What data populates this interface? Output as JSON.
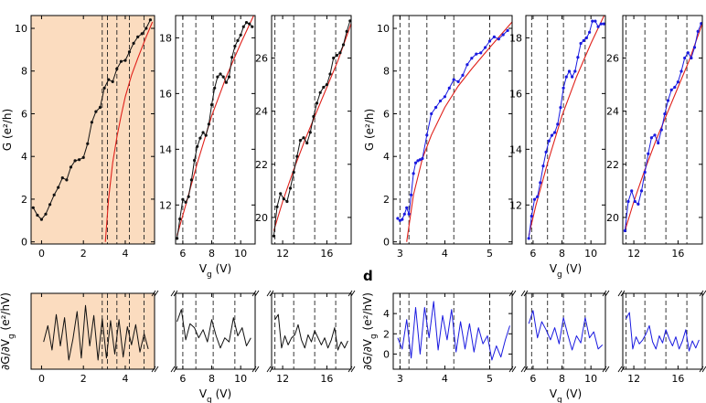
{
  "figure": {
    "panel_label": "d"
  },
  "colors": {
    "black": "#111111",
    "fit": "#e0201a",
    "blue": "#1a1ae0",
    "shade": "#fbdcbf"
  },
  "chart_data": [
    {
      "id": "g_black_1",
      "type": "line",
      "row": "top",
      "color": "#111111",
      "shaded": true,
      "ylabel": "G (e²/h)",
      "xlabel": "",
      "xlim": [
        -0.5,
        5.4
      ],
      "ylim": [
        -0.1,
        10.6
      ],
      "xticks": [
        0,
        2,
        4
      ],
      "yticks": [
        0,
        2,
        4,
        6,
        8,
        10
      ],
      "dashed_x": [
        2.9,
        3.15,
        3.6,
        4.2,
        4.9
      ],
      "x": [
        -0.4,
        -0.2,
        0.0,
        0.2,
        0.4,
        0.6,
        0.8,
        1.0,
        1.2,
        1.4,
        1.6,
        1.8,
        2.0,
        2.2,
        2.4,
        2.6,
        2.8,
        3.0,
        3.2,
        3.4,
        3.6,
        3.8,
        4.0,
        4.2,
        4.4,
        4.6,
        4.8,
        5.0,
        5.2
      ],
      "y": [
        1.6,
        1.25,
        1.05,
        1.3,
        1.75,
        2.2,
        2.55,
        3.0,
        2.9,
        3.5,
        3.8,
        3.85,
        3.95,
        4.6,
        5.6,
        6.1,
        6.3,
        7.2,
        7.6,
        7.5,
        8.1,
        8.45,
        8.5,
        8.9,
        9.3,
        9.6,
        9.75,
        10.0,
        10.4
      ],
      "fit": {
        "x": [
          3.05,
          3.2,
          3.4,
          3.6,
          3.8,
          4.0,
          4.3,
          4.6,
          5.0,
          5.3
        ],
        "y": [
          0.0,
          2.0,
          3.7,
          4.9,
          5.9,
          6.8,
          7.8,
          8.6,
          9.6,
          10.3
        ]
      }
    },
    {
      "id": "g_black_2",
      "type": "line",
      "row": "top",
      "color": "#111111",
      "shaded": false,
      "ylabel": "",
      "xlabel": "V_g (V)",
      "xlim": [
        5.5,
        11.0
      ],
      "ylim": [
        10.6,
        18.8
      ],
      "xticks": [
        6,
        8,
        10
      ],
      "yticks": [
        12,
        14,
        16,
        18
      ],
      "dashed_x": [
        6.0,
        6.9,
        8.1,
        9.6
      ],
      "x": [
        5.6,
        5.8,
        6.0,
        6.2,
        6.4,
        6.6,
        6.8,
        7.0,
        7.2,
        7.4,
        7.6,
        7.8,
        8.0,
        8.2,
        8.4,
        8.6,
        8.8,
        9.0,
        9.2,
        9.4,
        9.6,
        9.8,
        10.0,
        10.2,
        10.4,
        10.6,
        10.8
      ],
      "y": [
        10.8,
        11.5,
        12.2,
        12.1,
        12.3,
        12.9,
        13.6,
        14.1,
        14.4,
        14.6,
        14.5,
        14.9,
        15.6,
        16.2,
        16.6,
        16.7,
        16.6,
        16.4,
        16.6,
        17.3,
        17.7,
        17.9,
        18.1,
        18.4,
        18.55,
        18.5,
        18.4
      ],
      "fit": {
        "x": [
          5.6,
          6.2,
          7.0,
          8.0,
          9.0,
          10.0,
          10.9
        ],
        "y": [
          10.9,
          12.0,
          13.5,
          15.2,
          16.6,
          17.8,
          18.8
        ]
      }
    },
    {
      "id": "g_black_3",
      "type": "line",
      "row": "top",
      "color": "#111111",
      "shaded": false,
      "ylabel": "",
      "xlabel": "",
      "xlim": [
        11.0,
        18.2
      ],
      "ylim": [
        19.0,
        27.6
      ],
      "xticks": [
        12,
        16
      ],
      "yticks": [
        20,
        22,
        24,
        26
      ],
      "dashed_x": [
        11.3,
        13.0,
        14.9,
        16.8
      ],
      "x": [
        11.2,
        11.5,
        11.8,
        12.1,
        12.4,
        12.7,
        13.0,
        13.3,
        13.6,
        13.9,
        14.2,
        14.5,
        14.8,
        15.1,
        15.4,
        15.7,
        16.0,
        16.3,
        16.6,
        16.9,
        17.2,
        17.5,
        17.8,
        18.1
      ],
      "y": [
        19.3,
        20.4,
        20.9,
        20.7,
        20.6,
        21.1,
        21.7,
        22.3,
        22.9,
        23.0,
        22.8,
        23.2,
        23.8,
        24.3,
        24.7,
        24.9,
        25.0,
        25.4,
        26.0,
        26.1,
        26.2,
        26.5,
        27.0,
        27.4
      ],
      "fit": {
        "x": [
          11.2,
          12.0,
          13.0,
          14.0,
          15.0,
          16.0,
          17.0,
          18.2
        ],
        "y": [
          19.5,
          20.6,
          21.8,
          22.9,
          23.9,
          24.9,
          25.9,
          27.3
        ]
      }
    },
    {
      "id": "g_blue_1",
      "type": "line",
      "row": "top",
      "color": "#1a1ae0",
      "shaded": false,
      "ylabel": "G (e²/h)",
      "xlabel": "",
      "xlim": [
        2.85,
        5.5
      ],
      "ylim": [
        -0.1,
        10.6
      ],
      "xticks": [
        3,
        4,
        5
      ],
      "yticks": [
        0,
        2,
        4,
        6,
        8,
        10
      ],
      "dashed_x": [
        3.0,
        3.2,
        3.6,
        4.2,
        5.0
      ],
      "x": [
        2.95,
        3.0,
        3.05,
        3.1,
        3.15,
        3.2,
        3.25,
        3.3,
        3.35,
        3.4,
        3.45,
        3.5,
        3.6,
        3.7,
        3.8,
        3.9,
        4.0,
        4.1,
        4.2,
        4.3,
        4.4,
        4.5,
        4.6,
        4.7,
        4.8,
        4.9,
        5.0,
        5.1,
        5.2,
        5.3,
        5.4
      ],
      "y": [
        1.1,
        1.0,
        1.05,
        1.3,
        1.6,
        1.3,
        2.2,
        3.2,
        3.7,
        3.8,
        3.85,
        3.9,
        5.0,
        6.0,
        6.3,
        6.6,
        6.8,
        7.2,
        7.6,
        7.5,
        7.8,
        8.3,
        8.6,
        8.8,
        8.85,
        9.1,
        9.4,
        9.6,
        9.5,
        9.7,
        9.9
      ],
      "fit": {
        "x": [
          3.15,
          3.3,
          3.5,
          3.7,
          4.0,
          4.3,
          4.6,
          5.0,
          5.5
        ],
        "y": [
          0.0,
          2.2,
          3.9,
          5.0,
          6.3,
          7.3,
          8.1,
          9.1,
          10.3
        ]
      }
    },
    {
      "id": "g_blue_2",
      "type": "line",
      "row": "top",
      "color": "#1a1ae0",
      "shaded": false,
      "ylabel": "",
      "xlabel": "V_g (V)",
      "xlim": [
        5.5,
        11.0
      ],
      "ylim": [
        10.6,
        18.8
      ],
      "xticks": [
        6,
        8,
        10
      ],
      "yticks": [
        12,
        14,
        16,
        18
      ],
      "dashed_x": [
        5.9,
        7.0,
        8.1,
        9.6
      ],
      "x": [
        5.7,
        5.9,
        6.1,
        6.3,
        6.5,
        6.7,
        6.9,
        7.1,
        7.3,
        7.5,
        7.7,
        7.9,
        8.1,
        8.3,
        8.5,
        8.7,
        8.9,
        9.1,
        9.3,
        9.5,
        9.7,
        9.9,
        10.1,
        10.3,
        10.5,
        10.7,
        10.9
      ],
      "y": [
        10.8,
        11.6,
        12.2,
        12.3,
        12.8,
        13.4,
        13.9,
        14.3,
        14.5,
        14.6,
        14.9,
        15.5,
        16.2,
        16.6,
        16.8,
        16.6,
        16.8,
        17.3,
        17.8,
        17.9,
        18.0,
        18.2,
        18.6,
        18.6,
        18.4,
        18.5,
        18.5
      ],
      "fit": {
        "x": [
          5.7,
          6.2,
          7.0,
          8.0,
          9.0,
          10.0,
          11.0
        ],
        "y": [
          10.9,
          12.0,
          13.5,
          15.2,
          16.6,
          17.8,
          18.9
        ]
      }
    },
    {
      "id": "g_blue_3",
      "type": "line",
      "row": "top",
      "color": "#1a1ae0",
      "shaded": false,
      "ylabel": "",
      "xlabel": "",
      "xlim": [
        11.0,
        18.2
      ],
      "ylim": [
        19.0,
        27.6
      ],
      "xticks": [
        12,
        16
      ],
      "yticks": [
        20,
        22,
        24,
        26
      ],
      "dashed_x": [
        11.3,
        13.0,
        14.9,
        16.8
      ],
      "x": [
        11.2,
        11.5,
        11.8,
        12.1,
        12.4,
        12.7,
        13.0,
        13.3,
        13.6,
        13.9,
        14.2,
        14.5,
        14.8,
        15.1,
        15.4,
        15.7,
        16.0,
        16.3,
        16.6,
        16.9,
        17.2,
        17.5,
        17.8,
        18.1
      ],
      "y": [
        19.5,
        20.6,
        21.0,
        20.6,
        20.5,
        21.0,
        21.7,
        22.4,
        23.0,
        23.1,
        22.8,
        23.3,
        23.9,
        24.4,
        24.8,
        24.9,
        25.1,
        25.5,
        26.0,
        26.2,
        26.0,
        26.4,
        27.0,
        27.3
      ],
      "fit": {
        "x": [
          11.2,
          12.0,
          13.0,
          14.0,
          15.0,
          16.0,
          17.0,
          18.2
        ],
        "y": [
          19.5,
          20.6,
          21.8,
          22.9,
          23.9,
          24.9,
          25.9,
          27.3
        ]
      }
    },
    {
      "id": "d_black_1",
      "type": "line",
      "row": "bottom",
      "color": "#111111",
      "shaded": true,
      "ylabel": "∂G/∂V_g (e²/hV)",
      "xlabel": "",
      "xlim": [
        -0.5,
        5.4
      ],
      "ylim": [
        -1.5,
        6.0
      ],
      "xticks": [
        0,
        2,
        4
      ],
      "yticks": [],
      "dashed_x": [
        2.9,
        3.15,
        3.6,
        4.2,
        4.9
      ],
      "x": [
        0.1,
        0.3,
        0.5,
        0.7,
        0.9,
        1.1,
        1.3,
        1.5,
        1.7,
        1.9,
        2.1,
        2.3,
        2.5,
        2.7,
        2.9,
        3.1,
        3.3,
        3.5,
        3.7,
        3.9,
        4.1,
        4.3,
        4.5,
        4.7,
        4.9,
        5.1
      ],
      "y": [
        1.2,
        2.8,
        0.4,
        3.9,
        0.8,
        3.6,
        -0.6,
        1.5,
        4.2,
        -0.4,
        4.8,
        0.8,
        3.8,
        -0.6,
        3.5,
        -0.4,
        3.3,
        0.0,
        3.4,
        -0.3,
        2.7,
        0.9,
        2.9,
        0.2,
        2.0,
        0.5
      ]
    },
    {
      "id": "d_black_2",
      "type": "line",
      "row": "bottom",
      "color": "#111111",
      "shaded": false,
      "ylabel": "",
      "xlabel": "V_g (V)",
      "xlim": [
        5.5,
        11.0
      ],
      "ylim": [
        -1.5,
        6.0
      ],
      "xticks": [
        6,
        8,
        10
      ],
      "yticks": [],
      "dashed_x": [
        6.0,
        6.9,
        8.1,
        9.6
      ],
      "x": [
        5.6,
        5.9,
        6.2,
        6.5,
        6.8,
        7.1,
        7.4,
        7.7,
        8.0,
        8.3,
        8.6,
        8.9,
        9.2,
        9.5,
        9.8,
        10.1,
        10.4,
        10.7
      ],
      "y": [
        3.2,
        4.4,
        1.4,
        3.0,
        2.6,
        1.6,
        2.4,
        1.2,
        3.4,
        1.8,
        0.6,
        1.6,
        1.2,
        3.6,
        1.8,
        2.6,
        0.8,
        1.6
      ]
    },
    {
      "id": "d_black_3",
      "type": "line",
      "row": "bottom",
      "color": "#111111",
      "shaded": false,
      "ylabel": "",
      "xlabel": "",
      "xlim": [
        11.0,
        18.2
      ],
      "ylim": [
        -1.5,
        6.0
      ],
      "xticks": [
        12,
        16
      ],
      "yticks": [],
      "dashed_x": [
        11.3,
        13.0,
        14.9,
        16.8
      ],
      "x": [
        11.3,
        11.6,
        11.9,
        12.2,
        12.5,
        12.8,
        13.1,
        13.4,
        13.7,
        14.0,
        14.3,
        14.6,
        14.9,
        15.2,
        15.5,
        15.8,
        16.1,
        16.4,
        16.7,
        17.0,
        17.3,
        17.6,
        17.9
      ],
      "y": [
        3.4,
        3.9,
        0.6,
        1.8,
        0.9,
        1.6,
        1.9,
        2.9,
        1.4,
        0.6,
        1.9,
        1.2,
        2.3,
        1.6,
        0.9,
        1.6,
        0.6,
        1.4,
        2.6,
        0.4,
        1.2,
        0.6,
        1.3
      ]
    },
    {
      "id": "d_blue_1",
      "type": "line",
      "row": "bottom",
      "color": "#1a1ae0",
      "shaded": false,
      "ylabel": "∂G/∂V_g (e²/hV)",
      "xlabel": "",
      "xlim": [
        2.85,
        5.5
      ],
      "ylim": [
        -1.5,
        6.0
      ],
      "xticks": [
        3,
        4,
        5
      ],
      "yticks": [
        0,
        2,
        4
      ],
      "dashed_x": [
        3.0,
        3.2,
        3.6,
        4.2,
        5.0
      ],
      "x": [
        2.95,
        3.05,
        3.15,
        3.25,
        3.35,
        3.45,
        3.55,
        3.65,
        3.75,
        3.85,
        3.95,
        4.05,
        4.15,
        4.25,
        4.35,
        4.45,
        4.55,
        4.65,
        4.75,
        4.85,
        4.95,
        5.05,
        5.15,
        5.25,
        5.35,
        5.45
      ],
      "y": [
        1.6,
        0.5,
        3.4,
        -0.4,
        4.6,
        0.0,
        4.6,
        1.6,
        5.2,
        0.4,
        3.8,
        1.4,
        4.4,
        0.2,
        3.2,
        0.5,
        3.0,
        0.2,
        2.6,
        1.0,
        1.8,
        -0.6,
        0.8,
        -0.3,
        1.4,
        2.8
      ]
    },
    {
      "id": "d_blue_2",
      "type": "line",
      "row": "bottom",
      "color": "#1a1ae0",
      "shaded": false,
      "ylabel": "",
      "xlabel": "V_g (V)",
      "xlim": [
        5.5,
        11.0
      ],
      "ylim": [
        -1.5,
        6.0
      ],
      "xticks": [
        6,
        8,
        10
      ],
      "yticks": [],
      "dashed_x": [
        5.9,
        7.0,
        8.1,
        9.6
      ],
      "x": [
        5.7,
        6.0,
        6.3,
        6.6,
        6.9,
        7.2,
        7.5,
        7.8,
        8.1,
        8.4,
        8.7,
        9.0,
        9.3,
        9.6,
        9.9,
        10.2,
        10.5,
        10.8
      ],
      "y": [
        3.0,
        4.3,
        1.6,
        3.2,
        2.4,
        1.4,
        2.6,
        1.0,
        3.6,
        1.9,
        0.4,
        1.8,
        1.1,
        3.6,
        1.6,
        2.2,
        0.5,
        0.9
      ]
    },
    {
      "id": "d_blue_3",
      "type": "line",
      "row": "bottom",
      "color": "#1a1ae0",
      "shaded": false,
      "ylabel": "",
      "xlabel": "",
      "xlim": [
        11.0,
        18.2
      ],
      "ylim": [
        -1.5,
        6.0
      ],
      "xticks": [
        12,
        16
      ],
      "yticks": [],
      "dashed_x": [
        11.3,
        13.0,
        14.9,
        16.8
      ],
      "x": [
        11.3,
        11.6,
        11.9,
        12.2,
        12.5,
        12.8,
        13.1,
        13.4,
        13.7,
        14.0,
        14.3,
        14.6,
        14.9,
        15.2,
        15.5,
        15.8,
        16.1,
        16.4,
        16.7,
        17.0,
        17.3,
        17.6,
        17.9
      ],
      "y": [
        3.5,
        4.1,
        0.5,
        1.7,
        1.0,
        1.4,
        2.0,
        2.8,
        1.2,
        0.5,
        1.8,
        1.1,
        2.4,
        1.5,
        0.8,
        1.7,
        0.5,
        1.3,
        2.4,
        0.3,
        1.3,
        0.6,
        1.4
      ]
    }
  ]
}
